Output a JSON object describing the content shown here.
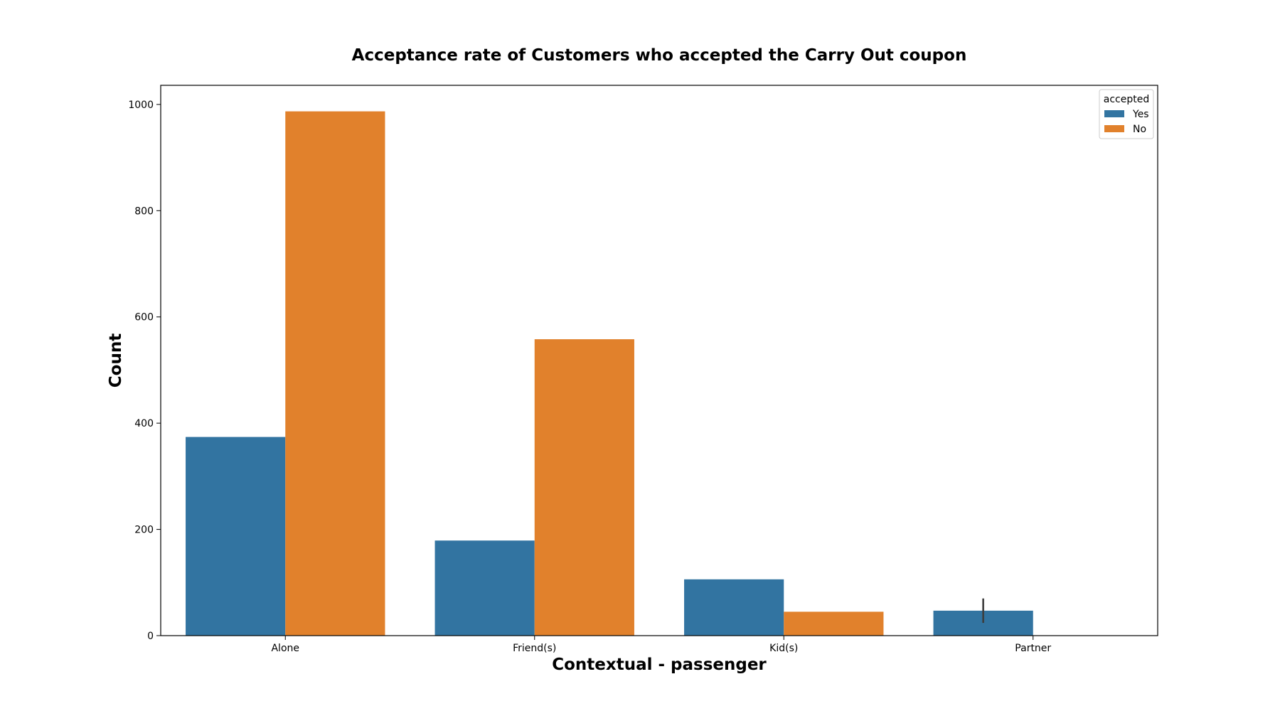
{
  "chart_data": {
    "type": "bar",
    "title": "Acceptance rate of Customers who accepted the Carry Out coupon",
    "xlabel": "Contextual - passenger",
    "ylabel": "Count",
    "categories": [
      "Alone",
      "Friend(s)",
      "Kid(s)",
      "Partner"
    ],
    "series": [
      {
        "name": "Yes",
        "values": [
          374,
          179,
          106,
          47
        ],
        "color": "#3274a1"
      },
      {
        "name": "No",
        "values": [
          987,
          558,
          45,
          null
        ],
        "color": "#e1812c"
      }
    ],
    "error_bars": [
      {
        "series": "Yes",
        "category": "Partner",
        "low": 24,
        "high": 70
      }
    ],
    "ylim": [
      0,
      1036
    ],
    "yticks": [
      0,
      200,
      400,
      600,
      800,
      1000
    ],
    "grid": false,
    "legend": {
      "title": "accepted",
      "placement": "top-right"
    }
  }
}
